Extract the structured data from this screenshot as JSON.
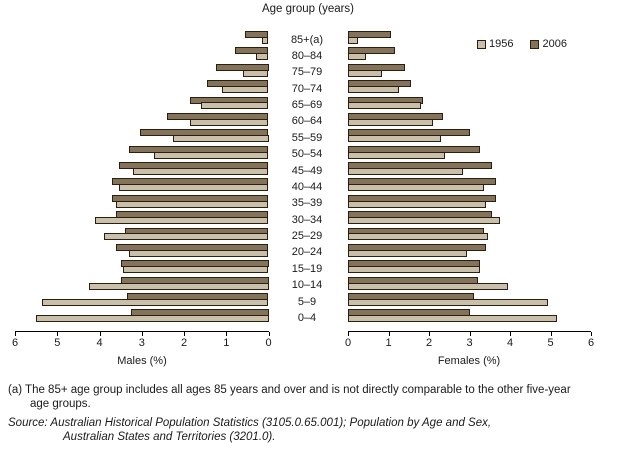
{
  "title": "Age group (years)",
  "legend": {
    "items": [
      {
        "label": "1956"
      },
      {
        "label": "2006"
      }
    ]
  },
  "colors": {
    "series_1956": "#c8c0aa",
    "series_2006": "#82735a",
    "bar_border": "#2d1e0f",
    "axis": "#000000",
    "text": "#1a1a1a"
  },
  "axes": {
    "left_label": "Males (%)",
    "right_label": "Females (%)",
    "ticks": [
      0,
      1,
      2,
      3,
      4,
      5,
      6
    ],
    "max": 6
  },
  "chart_data": {
    "type": "bar",
    "subtype": "population_pyramid",
    "title": "Age group (years)",
    "unit": "% of total population",
    "xlim": [
      0,
      6
    ],
    "grid": false,
    "legend_position": "top-right",
    "xlabel_left": "Males (%)",
    "xlabel_right": "Females (%)",
    "categories_top_to_bottom": [
      "85+(a)",
      "80–84",
      "75–79",
      "70–74",
      "65–69",
      "60–64",
      "55–59",
      "50–54",
      "45–49",
      "40–44",
      "35–39",
      "30–34",
      "25–29",
      "20–24",
      "15–19",
      "10–14",
      "5–9",
      "0–4"
    ],
    "series": [
      {
        "name": "1956",
        "side": "males",
        "values": [
          0.15,
          0.3,
          0.6,
          1.1,
          1.6,
          1.85,
          2.25,
          2.7,
          3.2,
          3.55,
          3.6,
          4.1,
          3.9,
          3.3,
          3.45,
          4.25,
          5.35,
          5.5
        ]
      },
      {
        "name": "2006",
        "side": "males",
        "values": [
          0.55,
          0.8,
          1.25,
          1.45,
          1.85,
          2.4,
          3.05,
          3.3,
          3.55,
          3.7,
          3.7,
          3.6,
          3.4,
          3.6,
          3.5,
          3.5,
          3.35,
          3.25
        ]
      },
      {
        "name": "1956",
        "side": "females",
        "values": [
          0.25,
          0.45,
          0.85,
          1.25,
          1.8,
          2.1,
          2.3,
          2.4,
          2.85,
          3.35,
          3.4,
          3.75,
          3.45,
          2.95,
          3.25,
          3.95,
          4.95,
          5.15
        ]
      },
      {
        "name": "2006",
        "side": "females",
        "values": [
          1.05,
          1.15,
          1.4,
          1.55,
          1.85,
          2.35,
          3.0,
          3.25,
          3.55,
          3.65,
          3.65,
          3.55,
          3.35,
          3.4,
          3.25,
          3.2,
          3.1,
          3.0
        ]
      }
    ]
  },
  "footnote": {
    "line1": "(a) The 85+ age group includes all ages 85 years and over and is not directly comparable to the other five-year",
    "line2": "age groups."
  },
  "source": {
    "line1": "Source: Australian Historical Population Statistics (3105.0.65.001); Population by Age and Sex,",
    "line2": "Australian States and Territories (3201.0)."
  }
}
